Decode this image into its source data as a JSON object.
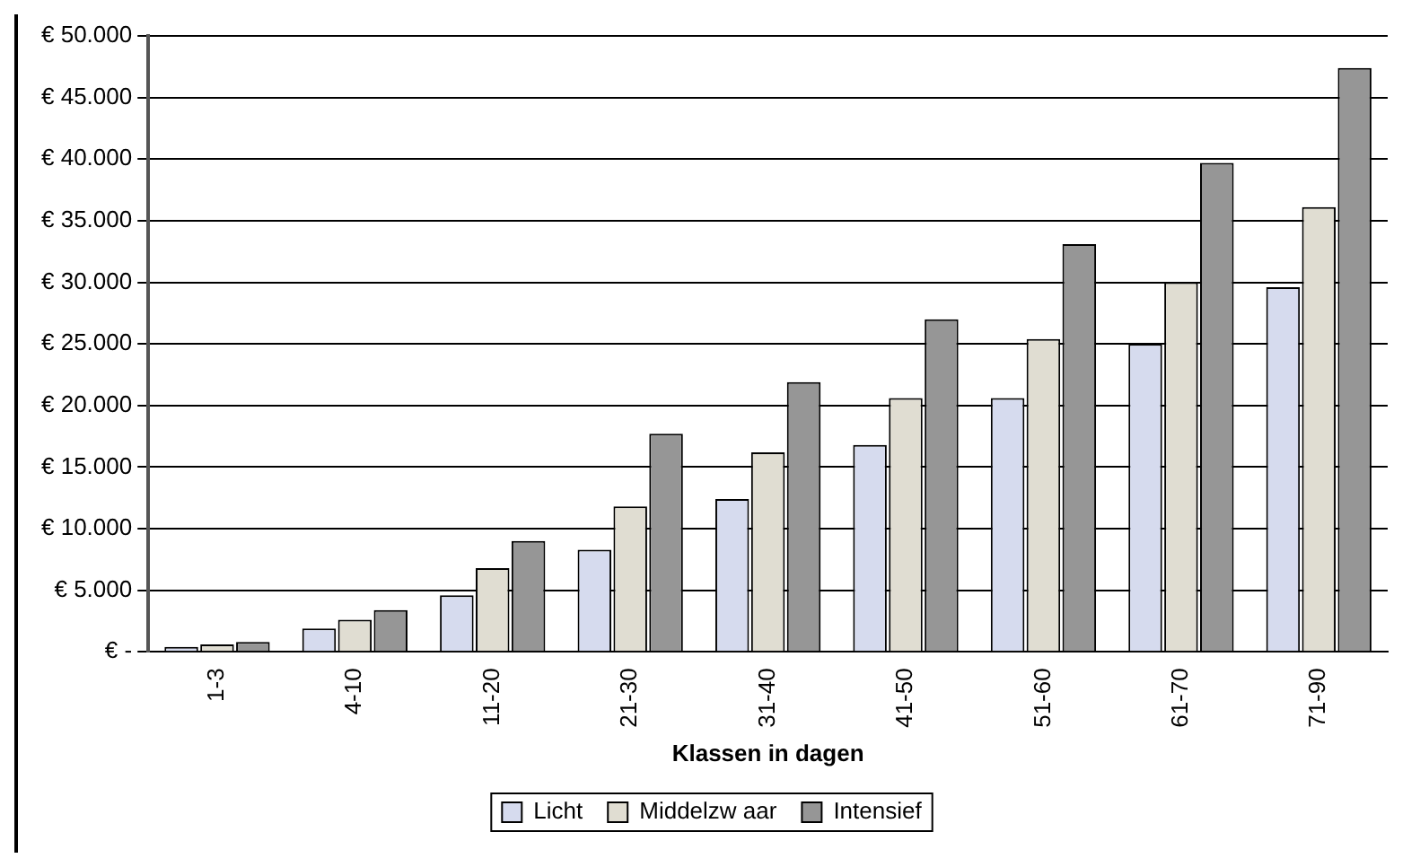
{
  "chart_data": {
    "type": "bar",
    "xlabel": "Klassen in dagen",
    "categories": [
      "1-3",
      "4-10",
      "11-20",
      "21-30",
      "31-40",
      "41-50",
      "51-60",
      "61-70",
      "71-90"
    ],
    "series": [
      {
        "name": "Licht",
        "color": "#d6dbee",
        "values": [
          400,
          1900,
          4600,
          8300,
          12400,
          16800,
          20600,
          25000,
          29600
        ]
      },
      {
        "name": "Middelzw aar",
        "color": "#e0ddd2",
        "values": [
          600,
          2600,
          6800,
          11800,
          16200,
          20600,
          25400,
          30000,
          36100
        ]
      },
      {
        "name": "Intensief",
        "color": "#969696",
        "values": [
          800,
          3400,
          9000,
          17700,
          21900,
          27000,
          33100,
          39700,
          47400
        ]
      }
    ],
    "ylim": [
      0,
      50000
    ],
    "yticks": [
      {
        "value": 0,
        "label": "€ -"
      },
      {
        "value": 5000,
        "label": "€ 5.000"
      },
      {
        "value": 10000,
        "label": "€ 10.000"
      },
      {
        "value": 15000,
        "label": "€ 15.000"
      },
      {
        "value": 20000,
        "label": "€ 20.000"
      },
      {
        "value": 25000,
        "label": "€ 25.000"
      },
      {
        "value": 30000,
        "label": "€ 30.000"
      },
      {
        "value": 35000,
        "label": "€ 35.000"
      },
      {
        "value": 40000,
        "label": "€ 40.000"
      },
      {
        "value": 45000,
        "label": "€ 45.000"
      },
      {
        "value": 50000,
        "label": "€ 50.000"
      }
    ],
    "grid": "y",
    "legend": "bottom"
  }
}
